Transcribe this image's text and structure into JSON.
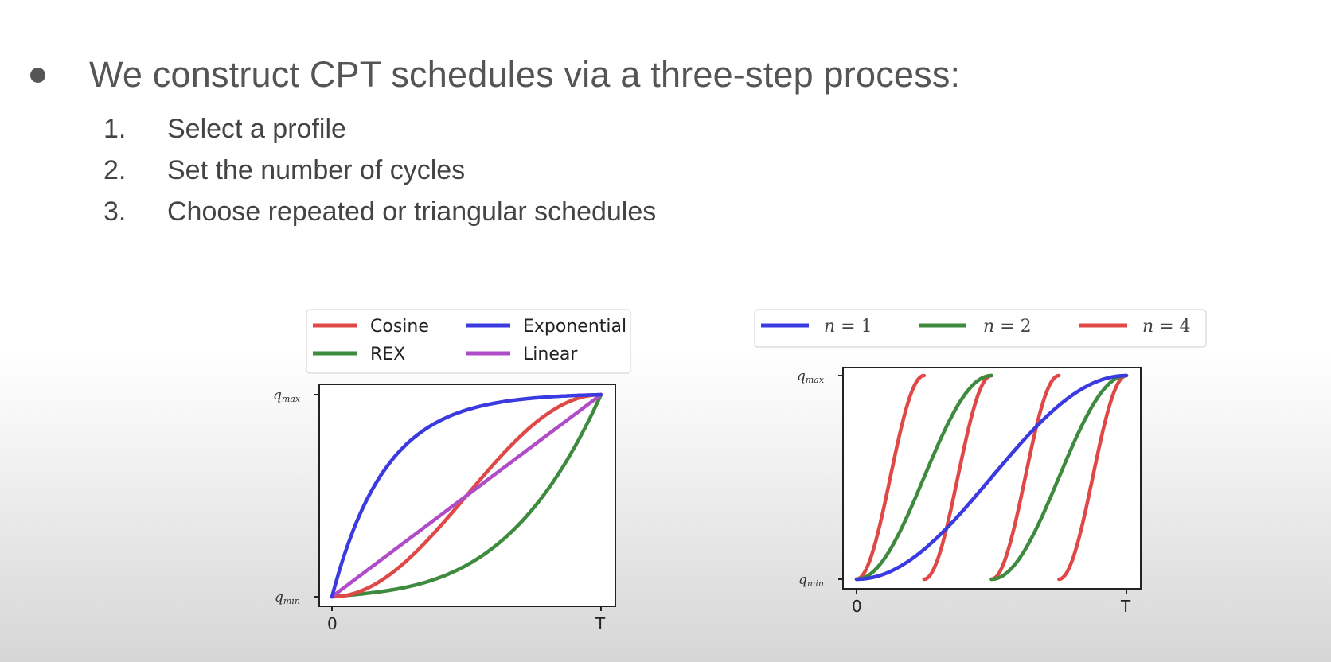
{
  "slide": {
    "bullet": "We construct CPT schedules via a three-step process:",
    "steps": [
      {
        "num": "1.",
        "text": "Select a profile"
      },
      {
        "num": "2.",
        "text": "Set the number of cycles"
      },
      {
        "num": "3.",
        "text": "Choose repeated or triangular schedules"
      }
    ]
  },
  "chart_data": [
    {
      "type": "line",
      "xlabel": "",
      "ylabel": "",
      "x_ticks": [
        "0",
        "T"
      ],
      "y_ticks": [
        {
          "base": "q",
          "sub": "min"
        },
        {
          "base": "q",
          "sub": "max"
        }
      ],
      "xlim": [
        0,
        1
      ],
      "ylim": [
        0,
        1
      ],
      "legend_position": "top (above plot, 2 columns)",
      "series": [
        {
          "name": "Cosine",
          "color": "#e04848",
          "profile": "cosine",
          "x": [
            0,
            0.1,
            0.2,
            0.3,
            0.4,
            0.5,
            0.6,
            0.7,
            0.8,
            0.9,
            1.0
          ],
          "y": [
            0,
            0.02,
            0.1,
            0.21,
            0.35,
            0.5,
            0.65,
            0.79,
            0.9,
            0.98,
            1.0
          ]
        },
        {
          "name": "Exponential",
          "color": "#3a3ae0",
          "profile": "exponential",
          "x": [
            0,
            0.1,
            0.2,
            0.3,
            0.4,
            0.5,
            0.6,
            0.7,
            0.8,
            0.9,
            1.0
          ],
          "y": [
            0,
            0.4,
            0.64,
            0.78,
            0.87,
            0.92,
            0.95,
            0.97,
            0.98,
            0.99,
            1.0
          ]
        },
        {
          "name": "REX",
          "color": "#3e8a3e",
          "profile": "rex",
          "x": [
            0,
            0.1,
            0.2,
            0.3,
            0.4,
            0.5,
            0.6,
            0.7,
            0.8,
            0.9,
            1.0
          ],
          "y": [
            0,
            0.02,
            0.05,
            0.07,
            0.1,
            0.14,
            0.19,
            0.27,
            0.4,
            0.6,
            1.0
          ]
        },
        {
          "name": "Linear",
          "color": "#b04cc8",
          "profile": "linear",
          "x": [
            0,
            1.0
          ],
          "y": [
            0,
            1.0
          ]
        }
      ]
    },
    {
      "type": "line",
      "xlabel": "",
      "ylabel": "",
      "x_ticks": [
        "0",
        "T"
      ],
      "y_ticks": [
        {
          "base": "q",
          "sub": "min"
        },
        {
          "base": "q",
          "sub": "max"
        }
      ],
      "xlim": [
        0,
        1
      ],
      "ylim": [
        0,
        1
      ],
      "legend_position": "top (above plot, 1 row)",
      "series": [
        {
          "name": "n = 1",
          "legend_n": "1",
          "cycles": 1,
          "color": "#3a3ae0"
        },
        {
          "name": "n = 2",
          "legend_n": "2",
          "cycles": 2,
          "color": "#3e8a3e"
        },
        {
          "name": "n = 4",
          "legend_n": "4",
          "cycles": 4,
          "color": "#e04848"
        }
      ],
      "profile": "cosine, repeated (each cycle rises from q_min to q_max)"
    }
  ],
  "colors": {
    "red": "#e04848",
    "blue": "#3a3ae0",
    "green": "#3e8a3e",
    "purple": "#b04cc8",
    "text": "#444444"
  }
}
